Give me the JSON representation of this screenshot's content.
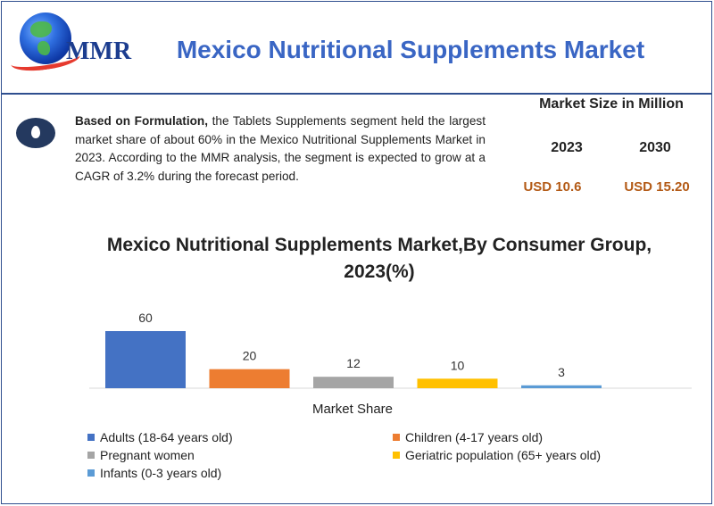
{
  "logo": {
    "text": "MMR"
  },
  "header": {
    "title": "Mexico Nutritional Supplements Market"
  },
  "info": {
    "icon": "flame-icon",
    "bold": "Based on Formulation,",
    "text": " the Tablets Supplements segment held the largest market share of about 60% in the Mexico Nutritional Supplements Market in 2023. According to the MMR analysis, the segment is expected to grow at a CAGR of 3.2% during the forecast period."
  },
  "market_size": {
    "title": "Market Size in Million",
    "year1": "2023",
    "year2": "2030",
    "value1": "USD 10.6",
    "value2": "USD 15.20"
  },
  "chart_data": {
    "type": "bar",
    "title": "Mexico Nutritional Supplements Market,By Consumer Group, 2023(%)",
    "xlabel": "Market Share",
    "ylabel": "",
    "ylim": [
      0,
      60
    ],
    "categories": [
      "Adults (18-64 years old)",
      "Children (4-17 years old)",
      "Pregnant women",
      "Geriatric population (65+ years old)",
      "Infants (0-3 years old)"
    ],
    "values": [
      60,
      20,
      12,
      10,
      3
    ],
    "colors": [
      "#4472c4",
      "#ed7d31",
      "#a5a5a5",
      "#ffc000",
      "#5b9bd5"
    ],
    "data_labels": [
      "60",
      "20",
      "12",
      "10",
      "3"
    ],
    "legend_position": "bottom",
    "grid": false
  }
}
